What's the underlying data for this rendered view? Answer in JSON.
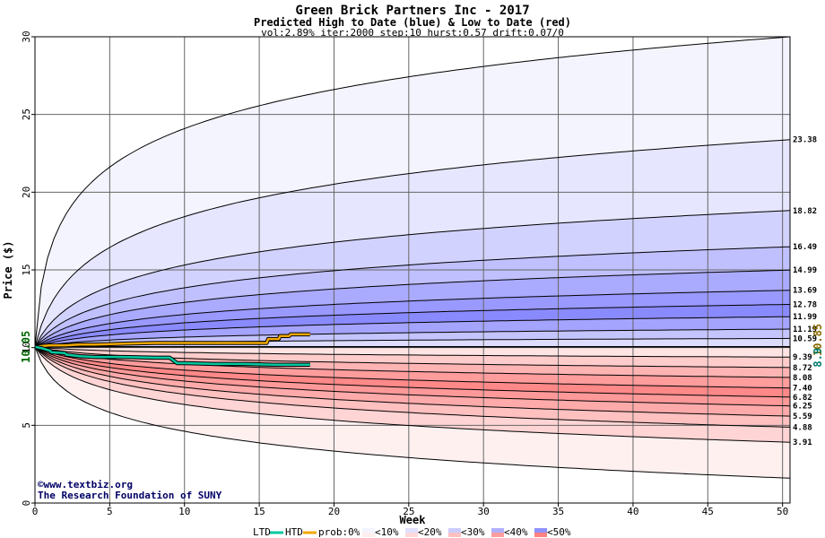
{
  "chart_data": {
    "type": "area",
    "title": "Green Brick Partners Inc - 2017",
    "subtitle": "Predicted High to Date (blue) &  Low to Date (red)",
    "params": "vol:2.89% iter:2000 step:10 hurst:0.57 drift:0.07/0",
    "xlabel": "Week",
    "ylabel": "Price ($)",
    "xlim": [
      0,
      50.5
    ],
    "ylim": [
      0,
      30
    ],
    "xticks": [
      0,
      5,
      10,
      15,
      20,
      25,
      30,
      35,
      40,
      45,
      50
    ],
    "yticks": [
      0,
      5,
      10,
      15,
      20,
      25,
      30
    ],
    "grid": true,
    "start_price": 10.05,
    "start_price_label": "10.05",
    "upper_bands": [
      {
        "end": 30.0,
        "k": 4.4,
        "label": ""
      },
      {
        "end": 23.38,
        "k": 1.3,
        "label": "23.38"
      },
      {
        "end": 18.82,
        "k": 0.9,
        "label": "18.82"
      },
      {
        "end": 16.49,
        "k": 0.8,
        "label": "16.49"
      },
      {
        "end": 14.99,
        "k": 0.7,
        "label": "14.99"
      },
      {
        "end": 13.69,
        "k": 0.65,
        "label": "13.69"
      },
      {
        "end": 12.78,
        "k": 0.6,
        "label": "12.78"
      },
      {
        "end": 11.99,
        "k": 0.55,
        "label": "11.99"
      },
      {
        "end": 11.19,
        "k": 0.5,
        "label": "11.19"
      },
      {
        "end": 10.59,
        "k": 0.5,
        "label": "10.59"
      }
    ],
    "lower_bands": [
      {
        "end": 9.39,
        "k": 0.5,
        "label": "9.39"
      },
      {
        "end": 8.72,
        "k": 0.55,
        "label": "8.72"
      },
      {
        "end": 8.08,
        "k": 0.6,
        "label": "8.08"
      },
      {
        "end": 7.4,
        "k": 0.6,
        "label": "7.40"
      },
      {
        "end": 6.82,
        "k": 0.65,
        "label": "6.82"
      },
      {
        "end": 6.25,
        "k": 0.7,
        "label": "6.25"
      },
      {
        "end": 5.59,
        "k": 0.75,
        "label": "5.59"
      },
      {
        "end": 4.88,
        "k": 0.8,
        "label": "4.88"
      },
      {
        "end": 3.91,
        "k": 0.95,
        "label": "3.91"
      },
      {
        "end": 1.6,
        "k": 1.6,
        "label": ""
      }
    ],
    "htd_series": {
      "color": "#f0a800",
      "x": [
        0,
        0.5,
        1,
        2,
        3,
        4,
        6,
        8,
        10,
        12,
        14,
        15.5,
        15.6,
        16.3,
        16.4,
        17,
        17.1,
        18.4
      ],
      "y": [
        10.05,
        10.1,
        10.15,
        10.15,
        10.2,
        10.2,
        10.25,
        10.3,
        10.3,
        10.3,
        10.3,
        10.3,
        10.55,
        10.55,
        10.75,
        10.75,
        10.85,
        10.85
      ]
    },
    "ltd_series": {
      "color": "#00c8a0",
      "x": [
        0,
        0.5,
        1,
        1.1,
        2,
        2.1,
        3,
        4,
        5,
        6,
        8,
        9,
        9.3,
        9.5,
        10,
        12,
        14,
        16,
        18.4
      ],
      "y": [
        10.05,
        9.95,
        9.8,
        9.7,
        9.65,
        9.55,
        9.45,
        9.4,
        9.4,
        9.4,
        9.35,
        9.35,
        9.15,
        9.0,
        9.0,
        8.95,
        8.95,
        8.9,
        8.9
      ]
    },
    "current_high_label": "10.85",
    "current_low_label": "8.9",
    "legend": {
      "ltd_label": "LTD",
      "htd_label": "HTD",
      "prob_label": "prob:0%",
      "prob_items": [
        "<10%",
        "<20%",
        "<30%",
        "<40%",
        "<50%"
      ]
    },
    "credits": [
      "©www.textbiz.org",
      "The Research Foundation of SUNY"
    ]
  },
  "colors": {
    "upper_fills": [
      "#f4f4ff",
      "#e6e6ff",
      "#d2d2ff",
      "#c0c0ff",
      "#aaaaff",
      "#9999ff",
      "#8a8aff",
      "#a4a4ff",
      "#c4c4ff",
      "#dcdcff"
    ],
    "lower_fills": [
      "#ffe4e4",
      "#ffcccc",
      "#ffb4b4",
      "#ff9c9c",
      "#ff8888",
      "#ff9999",
      "#ffaaaa",
      "#ffc0c0",
      "#ffd4d4",
      "#fff0f0"
    ],
    "start_label": "#006600",
    "high_label": "#8a6a00",
    "low_label": "#007a6a"
  }
}
